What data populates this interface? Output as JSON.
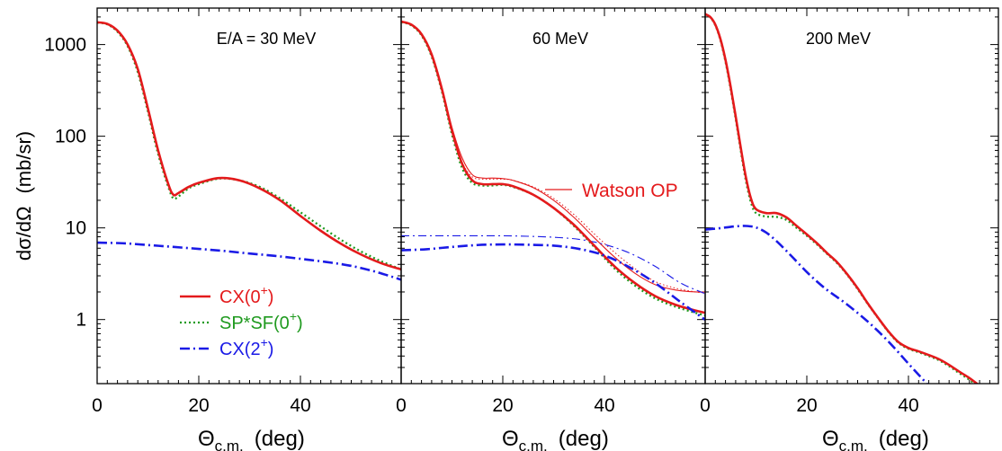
{
  "chart_data": {
    "type": "line",
    "ylabel_parts": [
      "dσ/dΩ",
      "(mb/sr)"
    ],
    "xlabel": {
      "theta": "Θ",
      "sub": "c.m.",
      "unit": "(deg)"
    },
    "yscale": "log",
    "ylim": [
      0.2,
      2500
    ],
    "yticks": [
      1,
      10,
      100,
      1000
    ],
    "ytick_labels": [
      "1",
      "10",
      "100",
      "1000"
    ],
    "grid": false,
    "legend": {
      "placement": "lower-left of first panel",
      "entries": [
        {
          "series": "cx0",
          "label": "CX(0",
          "sup": "+",
          "tail": ")",
          "color": "#e41a1c",
          "style": "solid"
        },
        {
          "series": "spsf",
          "label": "SP*SF(0",
          "sup": "+",
          "tail": ")",
          "color": "#1f9a1f",
          "style": "dotted"
        },
        {
          "series": "cx2",
          "label": "CX(2",
          "sup": "+",
          "tail": ")",
          "color": "#1a1ae6",
          "style": "dashdot"
        }
      ]
    },
    "annotation": {
      "label": "Watson OP",
      "color": "#e41a1c"
    },
    "panels": [
      {
        "title": "E/A = 30 MeV",
        "xlim": [
          0,
          60
        ],
        "xticks": [
          0,
          20,
          40
        ],
        "xtick_labels": [
          "0",
          "20",
          "40"
        ],
        "series": [
          {
            "key": "cx0",
            "x": [
              0,
              2,
              4,
              6,
              8,
              10,
              12,
              14,
              15,
              16,
              18,
              20,
              24,
              28,
              32,
              36,
              40,
              44,
              48,
              52,
              56,
              60
            ],
            "y": [
              1750,
              1680,
              1420,
              1000,
              540,
              200,
              70,
              30,
              23,
              24,
              28,
              31,
              35,
              33,
              27,
              20,
              13.5,
              9.3,
              6.7,
              5.1,
              4.1,
              3.5
            ]
          },
          {
            "key": "spsf",
            "x": [
              0,
              2,
              4,
              6,
              8,
              10,
              12,
              14,
              15,
              16,
              18,
              20,
              24,
              28,
              32,
              36,
              40,
              44,
              48,
              52,
              56,
              60
            ],
            "y": [
              1740,
              1660,
              1380,
              960,
              500,
              185,
              64,
              28,
              21,
              22,
              27,
              30,
              34.5,
              33,
              28,
              21,
              14.8,
              10.4,
              7.4,
              5.5,
              4.3,
              3.5
            ]
          },
          {
            "key": "cx2",
            "x": [
              0,
              5,
              10,
              15,
              20,
              25,
              30,
              35,
              40,
              45,
              50,
              55,
              60
            ],
            "y": [
              6.9,
              6.8,
              6.5,
              6.2,
              5.9,
              5.6,
              5.25,
              4.95,
              4.6,
              4.25,
              3.85,
              3.3,
              2.7
            ]
          }
        ]
      },
      {
        "title": "60 MeV",
        "xlim": [
          0,
          60
        ],
        "xticks": [
          0,
          20,
          40
        ],
        "xtick_labels": [
          "0",
          "20",
          "40"
        ],
        "series": [
          {
            "key": "cx0",
            "x": [
              0,
              2,
              4,
              6,
              8,
              10,
              12,
              14,
              16,
              18,
              20,
              22,
              26,
              30,
              34,
              38,
              42,
              46,
              50,
              54,
              58,
              60
            ],
            "y": [
              1780,
              1650,
              1300,
              780,
              330,
              115,
              50,
              33,
              30,
              30,
              30,
              28.5,
              23,
              16.5,
              10.8,
              6.4,
              3.8,
              2.5,
              1.8,
              1.45,
              1.25,
              1.18
            ]
          },
          {
            "key": "spsf",
            "x": [
              0,
              2,
              4,
              6,
              8,
              10,
              12,
              14,
              16,
              18,
              20,
              22,
              26,
              30,
              34,
              38,
              42,
              46,
              50,
              54,
              58,
              60
            ],
            "y": [
              1760,
              1620,
              1260,
              740,
              310,
              105,
              45,
              31,
              29,
              29,
              29.5,
              28,
              23,
              16.5,
              10.5,
              6.2,
              3.6,
              2.35,
              1.7,
              1.38,
              1.18,
              1.1
            ]
          },
          {
            "key": "cx2",
            "x": [
              0,
              5,
              10,
              15,
              20,
              25,
              30,
              35,
              40,
              45,
              50,
              55,
              60
            ],
            "y": [
              5.7,
              5.85,
              6.2,
              6.5,
              6.6,
              6.55,
              6.4,
              5.9,
              5.0,
              3.7,
              2.5,
              1.55,
              0.98
            ]
          },
          {
            "key": "cx0_watson",
            "x": [
              0,
              2,
              4,
              6,
              8,
              10,
              12,
              14,
              16,
              18,
              20,
              22,
              26,
              30,
              34,
              38,
              42,
              46,
              50,
              54,
              58,
              60
            ],
            "y": [
              1780,
              1650,
              1300,
              780,
              340,
              125,
              58,
              38,
              35,
              35,
              34.5,
              33,
              27.5,
              20,
              13,
              7.8,
              4.8,
              3.2,
              2.4,
              2.1,
              2.0,
              2.0
            ]
          },
          {
            "key": "spsf_watson",
            "x": [
              0,
              2,
              4,
              6,
              8,
              10,
              12,
              14,
              16,
              18,
              20,
              22,
              26,
              30,
              34,
              38,
              42,
              46,
              50,
              54,
              58,
              60
            ],
            "y": [
              1760,
              1620,
              1260,
              740,
              320,
              115,
              52,
              36,
              34,
              34,
              34,
              33,
              28,
              21,
              14,
              8.6,
              5.4,
              3.6,
              2.6,
              2.2,
              2.0,
              1.95
            ]
          },
          {
            "key": "cx2_watson",
            "x": [
              0,
              5,
              10,
              15,
              20,
              25,
              30,
              35,
              40,
              45,
              50,
              55,
              60
            ],
            "y": [
              8.2,
              8.2,
              8.2,
              8.2,
              8.2,
              8.1,
              7.9,
              7.5,
              6.6,
              5.3,
              3.8,
              2.5,
              1.9
            ]
          }
        ]
      },
      {
        "title": "200 MeV",
        "xlim": [
          0,
          60
        ],
        "xticks": [
          0,
          20,
          40
        ],
        "xtick_labels": [
          "0",
          "20",
          "40"
        ],
        "series": [
          {
            "key": "cx0",
            "x": [
              0,
              1,
              2,
              3,
              4,
              5,
              6,
              7,
              8,
              9,
              10,
              12,
              14,
              16,
              18,
              20,
              22,
              24,
              26,
              28,
              30,
              32,
              34,
              36,
              38,
              40,
              42,
              44,
              46,
              48,
              50,
              52,
              54
            ],
            "y": [
              2150,
              2000,
              1650,
              1150,
              680,
              350,
              165,
              75,
              36,
              21,
              16,
              14.5,
              14.5,
              13,
              10.5,
              8.5,
              6.8,
              5.3,
              4.2,
              3.1,
              2.2,
              1.5,
              1.05,
              0.75,
              0.57,
              0.49,
              0.45,
              0.41,
              0.37,
              0.32,
              0.27,
              0.23,
              0.19
            ]
          },
          {
            "key": "spsf",
            "x": [
              0,
              1,
              2,
              3,
              4,
              5,
              6,
              7,
              8,
              9,
              10,
              12,
              14,
              16,
              18,
              20,
              22,
              24,
              26,
              28,
              30,
              32,
              34,
              36,
              38,
              40,
              42,
              44,
              46,
              48,
              50,
              52,
              54
            ],
            "y": [
              2130,
              1980,
              1620,
              1120,
              650,
              330,
              155,
              70,
              33,
              19,
              14.5,
              13.3,
              13.2,
              12.2,
              10,
              8.2,
              6.6,
              5.2,
              4.1,
              3.05,
              2.15,
              1.48,
              1.04,
              0.74,
              0.56,
              0.48,
              0.44,
              0.4,
              0.36,
              0.31,
              0.26,
              0.22,
              0.18
            ]
          },
          {
            "key": "cx2",
            "x": [
              0,
              2,
              4,
              6,
              8,
              10,
              12,
              14,
              16,
              18,
              20,
              22,
              24,
              26,
              28,
              30,
              32,
              34,
              36,
              38,
              40,
              42,
              44,
              45
            ],
            "y": [
              9.6,
              9.8,
              10.1,
              10.4,
              10.5,
              10.1,
              8.9,
              7.2,
              5.6,
              4.3,
              3.3,
              2.6,
              2.1,
              1.75,
              1.45,
              1.18,
              0.95,
              0.75,
              0.58,
              0.44,
              0.33,
              0.25,
              0.19,
              0.17
            ]
          }
        ]
      }
    ],
    "series_styles": {
      "cx0": {
        "color": "#e41a1c",
        "width": 2.6,
        "dash": ""
      },
      "spsf": {
        "color": "#1f9a1f",
        "width": 2.3,
        "dash": "2,3"
      },
      "cx2": {
        "color": "#1a1ae6",
        "width": 2.6,
        "dash": "11,4,2,4"
      },
      "cx0_watson": {
        "color": "#e41a1c",
        "width": 1.1,
        "dash": ""
      },
      "spsf_watson": {
        "color": "#e41a1c",
        "width": 1.0,
        "dash": "1.5,2.5"
      },
      "cx2_watson": {
        "color": "#1a1ae6",
        "width": 1.1,
        "dash": "9,4,2,4"
      }
    }
  }
}
